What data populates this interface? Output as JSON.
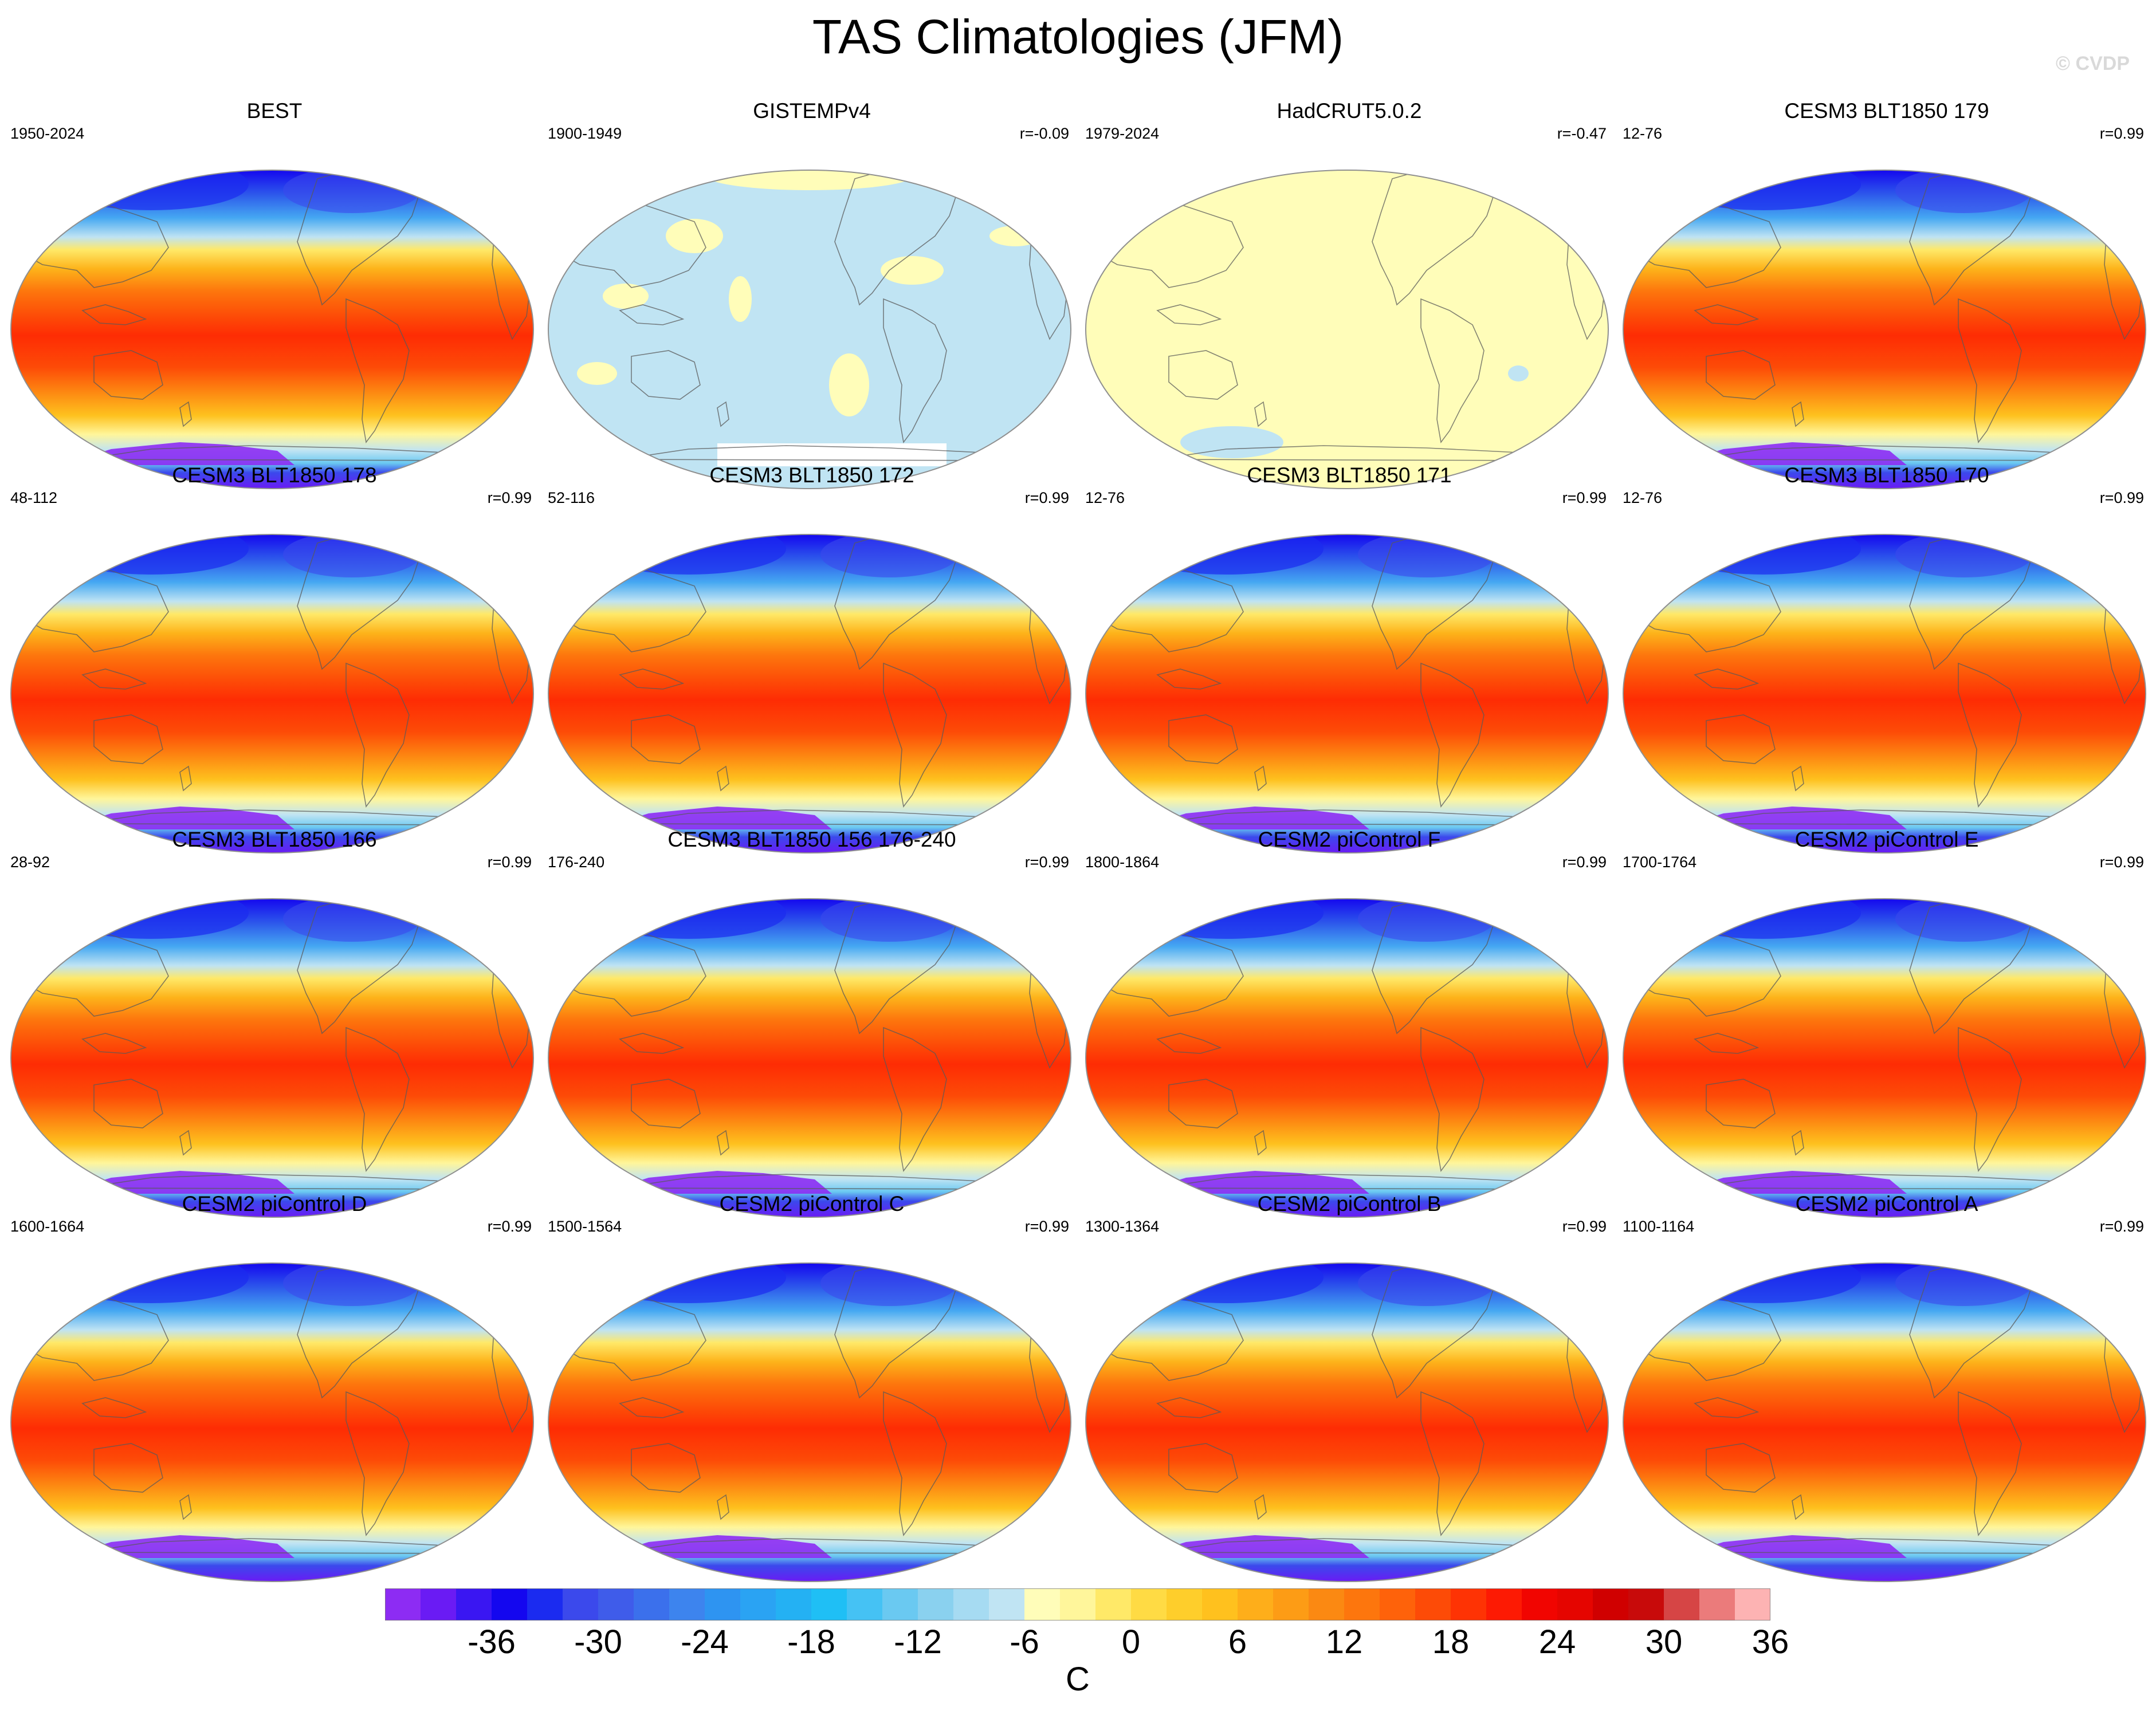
{
  "title": "TAS Climatologies (JFM)",
  "watermark": "© CVDP",
  "panels": [
    {
      "title": "BEST",
      "period": "1950-2024",
      "corr": "",
      "style": "obs"
    },
    {
      "title": "GISTEMPv4",
      "period": "1900-1949",
      "corr": "r=-0.09",
      "style": "pale-blue"
    },
    {
      "title": "HadCRUT5.0.2",
      "period": "1979-2024",
      "corr": "r=-0.47",
      "style": "pale-yellow"
    },
    {
      "title": "CESM3 BLT1850 179",
      "period": "12-76",
      "corr": "r=0.99",
      "style": "model"
    },
    {
      "title": "CESM3 BLT1850 178",
      "period": "48-112",
      "corr": "r=0.99",
      "style": "model"
    },
    {
      "title": "CESM3 BLT1850 172",
      "period": "52-116",
      "corr": "r=0.99",
      "style": "model"
    },
    {
      "title": "CESM3 BLT1850 171",
      "period": "12-76",
      "corr": "r=0.99",
      "style": "model"
    },
    {
      "title": "CESM3 BLT1850 170",
      "period": "12-76",
      "corr": "r=0.99",
      "style": "model"
    },
    {
      "title": "CESM3 BLT1850 166",
      "period": "28-92",
      "corr": "r=0.99",
      "style": "model"
    },
    {
      "title": "CESM3 BLT1850 156 176-240",
      "period": "176-240",
      "corr": "r=0.99",
      "style": "model"
    },
    {
      "title": "CESM2 piControl F",
      "period": "1800-1864",
      "corr": "r=0.99",
      "style": "model"
    },
    {
      "title": "CESM2 piControl E",
      "period": "1700-1764",
      "corr": "r=0.99",
      "style": "model"
    },
    {
      "title": "CESM2 piControl D",
      "period": "1600-1664",
      "corr": "r=0.99",
      "style": "model"
    },
    {
      "title": "CESM2 piControl C",
      "period": "1500-1564",
      "corr": "r=0.99",
      "style": "model"
    },
    {
      "title": "CESM2 piControl B",
      "period": "1300-1364",
      "corr": "r=0.99",
      "style": "model"
    },
    {
      "title": "CESM2 piControl A",
      "period": "1100-1164",
      "corr": "r=0.99",
      "style": "model"
    }
  ],
  "colorbar": {
    "unit": "C",
    "labels": [
      "-36",
      "-30",
      "-24",
      "-18",
      "-12",
      "-6",
      "0",
      "6",
      "12",
      "18",
      "24",
      "30",
      "36"
    ],
    "colors": [
      "#8d2cf3",
      "#6a1bf4",
      "#3a16f2",
      "#1407ef",
      "#1b2bf0",
      "#3b49ec",
      "#3f5cea",
      "#3b70ec",
      "#3d84ee",
      "#2e94f1",
      "#2aa3f3",
      "#24b1f3",
      "#1fbff5",
      "#45c2f4",
      "#6ac9f1",
      "#8ad1ef",
      "#a6dbf2",
      "#c0e4f3",
      "#fffdb9",
      "#fff69b",
      "#ffe968",
      "#ffdb44",
      "#fece2b",
      "#ffc11e",
      "#feae1a",
      "#fd9c15",
      "#fb8912",
      "#fd760d",
      "#fe620a",
      "#fd4b07",
      "#fe3304",
      "#fd1a03",
      "#f10501",
      "#e50500",
      "#d00000",
      "#c80a0a",
      "#d64545",
      "#eb7b7b",
      "#fdb3b3"
    ]
  }
}
